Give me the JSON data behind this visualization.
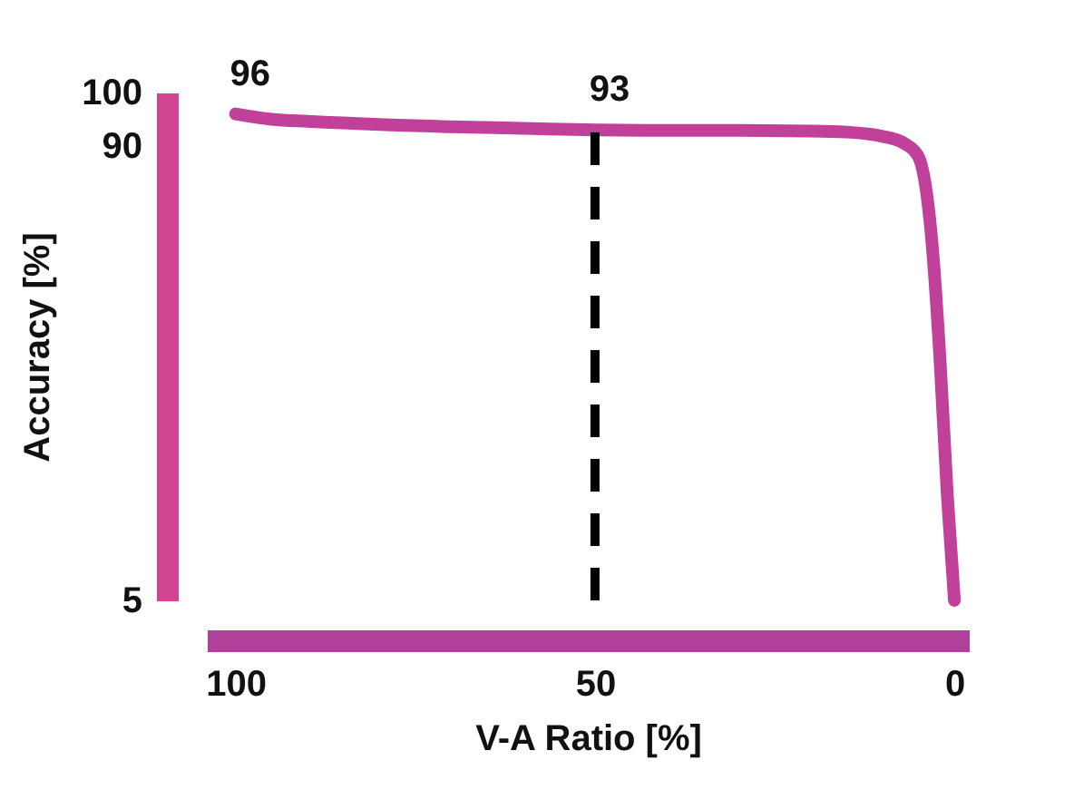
{
  "chart_data": {
    "type": "line",
    "xlabel": "V-A Ratio [%]",
    "ylabel": "Accuracy [%]",
    "x": [
      100,
      95,
      90,
      85,
      80,
      70,
      60,
      50,
      40,
      30,
      20,
      15,
      10,
      7,
      5,
      3,
      2,
      1,
      0
    ],
    "series": [
      {
        "color": "#c0409a",
        "values": [
          96,
          95.0,
          94.6,
          94.3,
          94.0,
          93.6,
          93.3,
          93,
          92.9,
          92.9,
          92.8,
          92.6,
          91.8,
          90.5,
          88,
          70,
          50,
          25,
          5
        ]
      }
    ],
    "xlim": [
      104,
      -2
    ],
    "xticks": [
      100,
      50,
      0
    ],
    "ylim": [
      5,
      100
    ],
    "yticks": [
      5,
      90,
      100
    ],
    "ref_lines": [
      {
        "axis": "x",
        "value": 50,
        "color": "#000000",
        "line_style": "dashed"
      }
    ],
    "annotations": [
      {
        "text": "96",
        "x": 100,
        "y": 96
      },
      {
        "text": "93",
        "x": 50,
        "y": 93
      }
    ],
    "grid": false,
    "marker": "none",
    "line_style": "solid"
  }
}
